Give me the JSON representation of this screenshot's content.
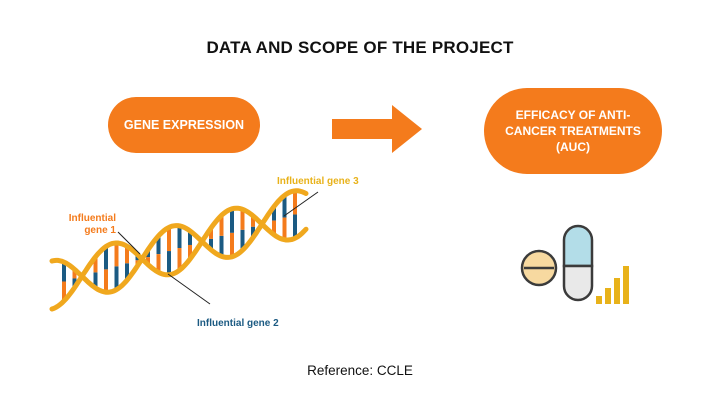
{
  "title": "DATA AND SCOPE OF THE PROJECT",
  "left_box": {
    "label": "GENE EXPRESSION"
  },
  "right_box": {
    "label": "EFFICACY  OF ANTI-\nCANCER TREATMENTS\n(AUC)"
  },
  "labels": {
    "gene1": "Influential\ngene 1",
    "gene2": "Influential gene 2",
    "gene3": "Influential gene 3"
  },
  "reference": "Reference: CCLE",
  "colors": {
    "accent_orange": "#f47b1c",
    "strand_gold": "#f0a81e",
    "rung_blue": "#1b5a82",
    "pill_blue": "#b3dde8",
    "bar_gold": "#e8b21a"
  },
  "icons": {
    "arrow": "arrow-right-icon",
    "dna": "dna-helix-icon",
    "pills": "pills-icon",
    "bars": "bar-chart-icon"
  }
}
